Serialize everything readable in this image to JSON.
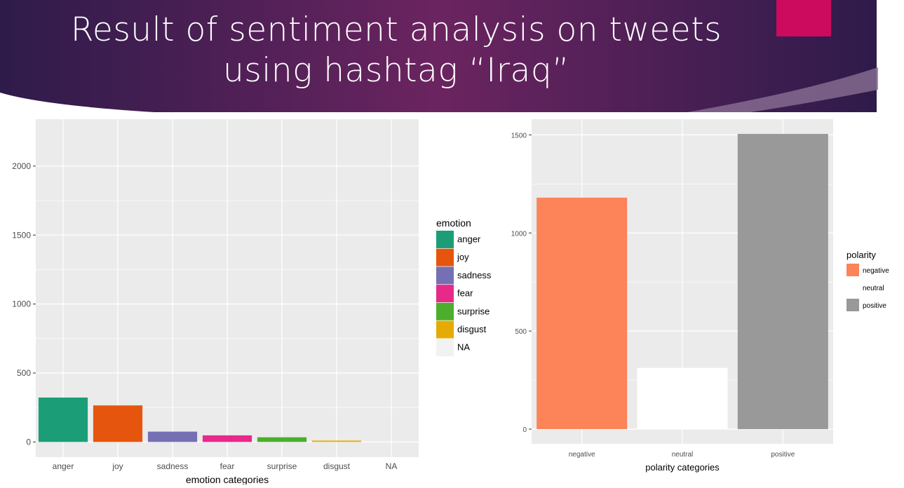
{
  "slide": {
    "title_line1": "Result of sentiment analysis on tweets",
    "title_line2": "using hashtag “Iraq”",
    "banner_color_start": "#2e1b4a",
    "banner_color_mid": "#6b2460",
    "accent_color": "#cc0a5e"
  },
  "chart_data": [
    {
      "type": "bar",
      "categories": [
        "anger",
        "joy",
        "sadness",
        "fear",
        "surprise",
        "disgust",
        "NA"
      ],
      "values": [
        322,
        265,
        75,
        48,
        34,
        10,
        0
      ],
      "colors": [
        "#1b9e77",
        "#e6550d",
        "#7570b3",
        "#e7298a",
        "#4cae2c",
        "#e6ab02",
        "#f2f2f2"
      ],
      "xlabel": "emotion categories",
      "ylabel": "",
      "ylim": [
        -110,
        2340
      ],
      "yticks": [
        0,
        500,
        1000,
        1500,
        2000
      ],
      "grid": true,
      "legend": {
        "title": "emotion",
        "placement": "right",
        "entries": [
          "anger",
          "joy",
          "sadness",
          "fear",
          "surprise",
          "disgust",
          "NA"
        ]
      }
    },
    {
      "type": "bar",
      "categories": [
        "negative",
        "neutral",
        "positive"
      ],
      "values": [
        1180,
        312,
        1505
      ],
      "colors": [
        "#fc8458",
        "#ffffff",
        "#999999"
      ],
      "xlabel": "polarity categories",
      "ylabel": "",
      "ylim": [
        -75,
        1580
      ],
      "yticks": [
        0,
        500,
        1000,
        1500
      ],
      "grid": true,
      "legend": {
        "title": "polarity",
        "placement": "right",
        "entries": [
          "negative",
          "neutral",
          "positive"
        ]
      }
    }
  ]
}
